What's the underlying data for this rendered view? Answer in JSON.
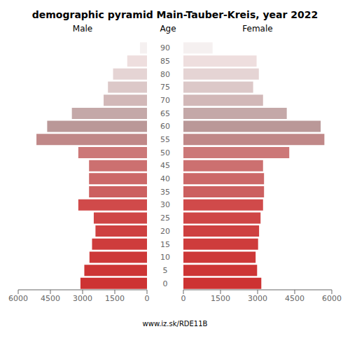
{
  "chart_data": {
    "type": "bar",
    "orientation": "horizontal",
    "title": "demographic pyramid Main-Tauber-Kreis, year 2022",
    "ylabel": "Age",
    "annotations": [
      "www.iz.sk/RDE11B"
    ],
    "categories": [
      "0",
      "5",
      "10",
      "15",
      "20",
      "25",
      "30",
      "35",
      "40",
      "45",
      "50",
      "55",
      "60",
      "65",
      "70",
      "75",
      "80",
      "85",
      "90"
    ],
    "series": [
      {
        "name": "Male",
        "values": [
          3100,
          2920,
          2680,
          2560,
          2400,
          2480,
          3200,
          2700,
          2700,
          2700,
          3200,
          5150,
          4650,
          3500,
          2020,
          1820,
          1580,
          920,
          330
        ]
      },
      {
        "name": "Female",
        "values": [
          3150,
          2980,
          2920,
          3020,
          3060,
          3120,
          3220,
          3260,
          3260,
          3220,
          4280,
          5700,
          5550,
          4180,
          3220,
          2820,
          3050,
          2960,
          1180
        ]
      }
    ],
    "colors": [
      "#cd3232",
      "#cd3535",
      "#cd3838",
      "#ce3c3c",
      "#ce4040",
      "#cf4545",
      "#d04a4a",
      "#cc6060",
      "#cc6868",
      "#cc7070",
      "#cc7878",
      "#c08888",
      "#ba9898",
      "#c4a8a8",
      "#d2b8b8",
      "#dcc8c8",
      "#e5d4d4",
      "#eedede",
      "#f5f0f0"
    ],
    "xlim": [
      0,
      6000
    ],
    "xticks": [
      0,
      1500,
      3000,
      4500,
      6000
    ],
    "grid": false
  }
}
